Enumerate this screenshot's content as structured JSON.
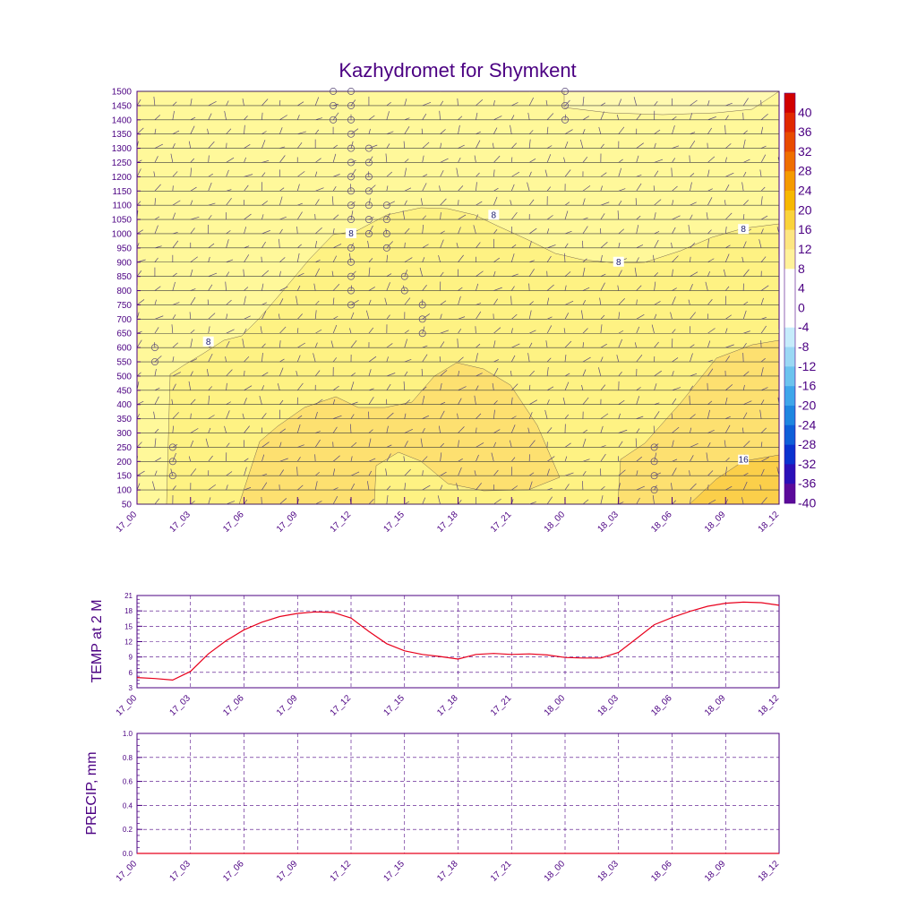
{
  "chart_data": [
    {
      "type": "contour",
      "title": "Kazhydromet for Shymkent",
      "xlabel": "",
      "ylabel": "",
      "x_ticks": [
        "17_00",
        "17_03",
        "17_06",
        "17_09",
        "17_12",
        "17_15",
        "17_18",
        "17_21",
        "18_00",
        "18_03",
        "18_06",
        "18_09",
        "18_12"
      ],
      "y_ticks": [
        50,
        100,
        150,
        200,
        250,
        300,
        350,
        400,
        450,
        500,
        550,
        600,
        650,
        700,
        750,
        800,
        850,
        900,
        950,
        1000,
        1050,
        1100,
        1150,
        1200,
        1250,
        1300,
        1350,
        1400,
        1450,
        1500
      ],
      "ylim": [
        50,
        1500
      ],
      "colorbar_levels": [
        40,
        36,
        32,
        28,
        24,
        20,
        16,
        12,
        8,
        4,
        0,
        -4,
        -8,
        -12,
        -16,
        -20,
        -24,
        -28,
        -32,
        -36,
        -40
      ],
      "colorbar_colors": {
        "40": "#d10000",
        "36": "#e02800",
        "32": "#e84a00",
        "28": "#ef6e00",
        "24": "#f59a00",
        "20": "#f7b800",
        "16": "#fad33a",
        "12": "#fde681",
        "8": "#fff29a",
        "4": "#ffffff",
        "0": "#ffffff",
        "-4": "#ffffff",
        "-8": "#c6ecfb",
        "-12": "#9bd8f4",
        "-16": "#6cc3ee",
        "-20": "#3fa6ea",
        "-24": "#1f86e0",
        "-28": "#0f5fd8",
        "-32": "#0a32cf",
        "-36": "#2a10b8",
        "-40": "#5b0a9a"
      },
      "contour_labels": [
        {
          "text": "8",
          "x": "17_12",
          "y": 1000
        },
        {
          "text": "8",
          "x": "17_20",
          "y": 1065
        },
        {
          "text": "8",
          "x": "18_03",
          "y": 900
        },
        {
          "text": "8",
          "x": "18_10",
          "y": 1015
        },
        {
          "text": "8",
          "x": "17_04",
          "y": 620
        },
        {
          "text": "16",
          "x": "18_10",
          "y": 205
        }
      ]
    },
    {
      "type": "line",
      "ylabel": "TEMP at 2 M",
      "x_ticks": [
        "17_00",
        "17_03",
        "17_06",
        "17_09",
        "17_12",
        "17_15",
        "17_18",
        "17_21",
        "18_00",
        "18_03",
        "18_06",
        "18_09",
        "18_12"
      ],
      "y_ticks": [
        3,
        6,
        9,
        12,
        15,
        18,
        21
      ],
      "ylim": [
        3,
        21
      ],
      "series": [
        {
          "name": "TEMP at 2 M",
          "color": "#e8001c",
          "x": [
            0,
            1,
            2,
            3,
            4,
            5,
            6,
            7,
            8,
            9,
            10,
            11,
            12,
            13,
            14,
            15,
            16,
            17,
            18,
            19,
            20,
            21,
            22,
            23,
            24,
            25,
            26,
            27,
            28,
            29,
            30,
            31,
            32,
            33,
            34,
            35,
            36
          ],
          "values": [
            5.0,
            4.8,
            4.5,
            6.2,
            9.6,
            12.2,
            14.3,
            15.8,
            16.9,
            17.5,
            17.8,
            17.7,
            16.6,
            14.0,
            11.6,
            10.2,
            9.5,
            9.1,
            8.6,
            9.5,
            9.7,
            9.5,
            9.6,
            9.4,
            8.9,
            8.8,
            8.8,
            9.9,
            12.6,
            15.3,
            16.7,
            17.9,
            18.9,
            19.5,
            19.7,
            19.6,
            19.1
          ]
        }
      ]
    },
    {
      "type": "line",
      "ylabel": "PRECIP, mm",
      "x_ticks": [
        "17_00",
        "17_03",
        "17_06",
        "17_09",
        "17_12",
        "17_15",
        "17_18",
        "17_21",
        "18_00",
        "18_03",
        "18_06",
        "18_09",
        "18_12"
      ],
      "y_ticks": [
        "0.0",
        "0.2",
        "0.4",
        "0.6",
        "0.8",
        "1.0"
      ],
      "ylim": [
        0,
        1
      ],
      "series": [
        {
          "name": "PRECIP, mm",
          "color": "#e8001c",
          "x": [
            0,
            36
          ],
          "values": [
            0,
            0
          ]
        }
      ]
    }
  ]
}
